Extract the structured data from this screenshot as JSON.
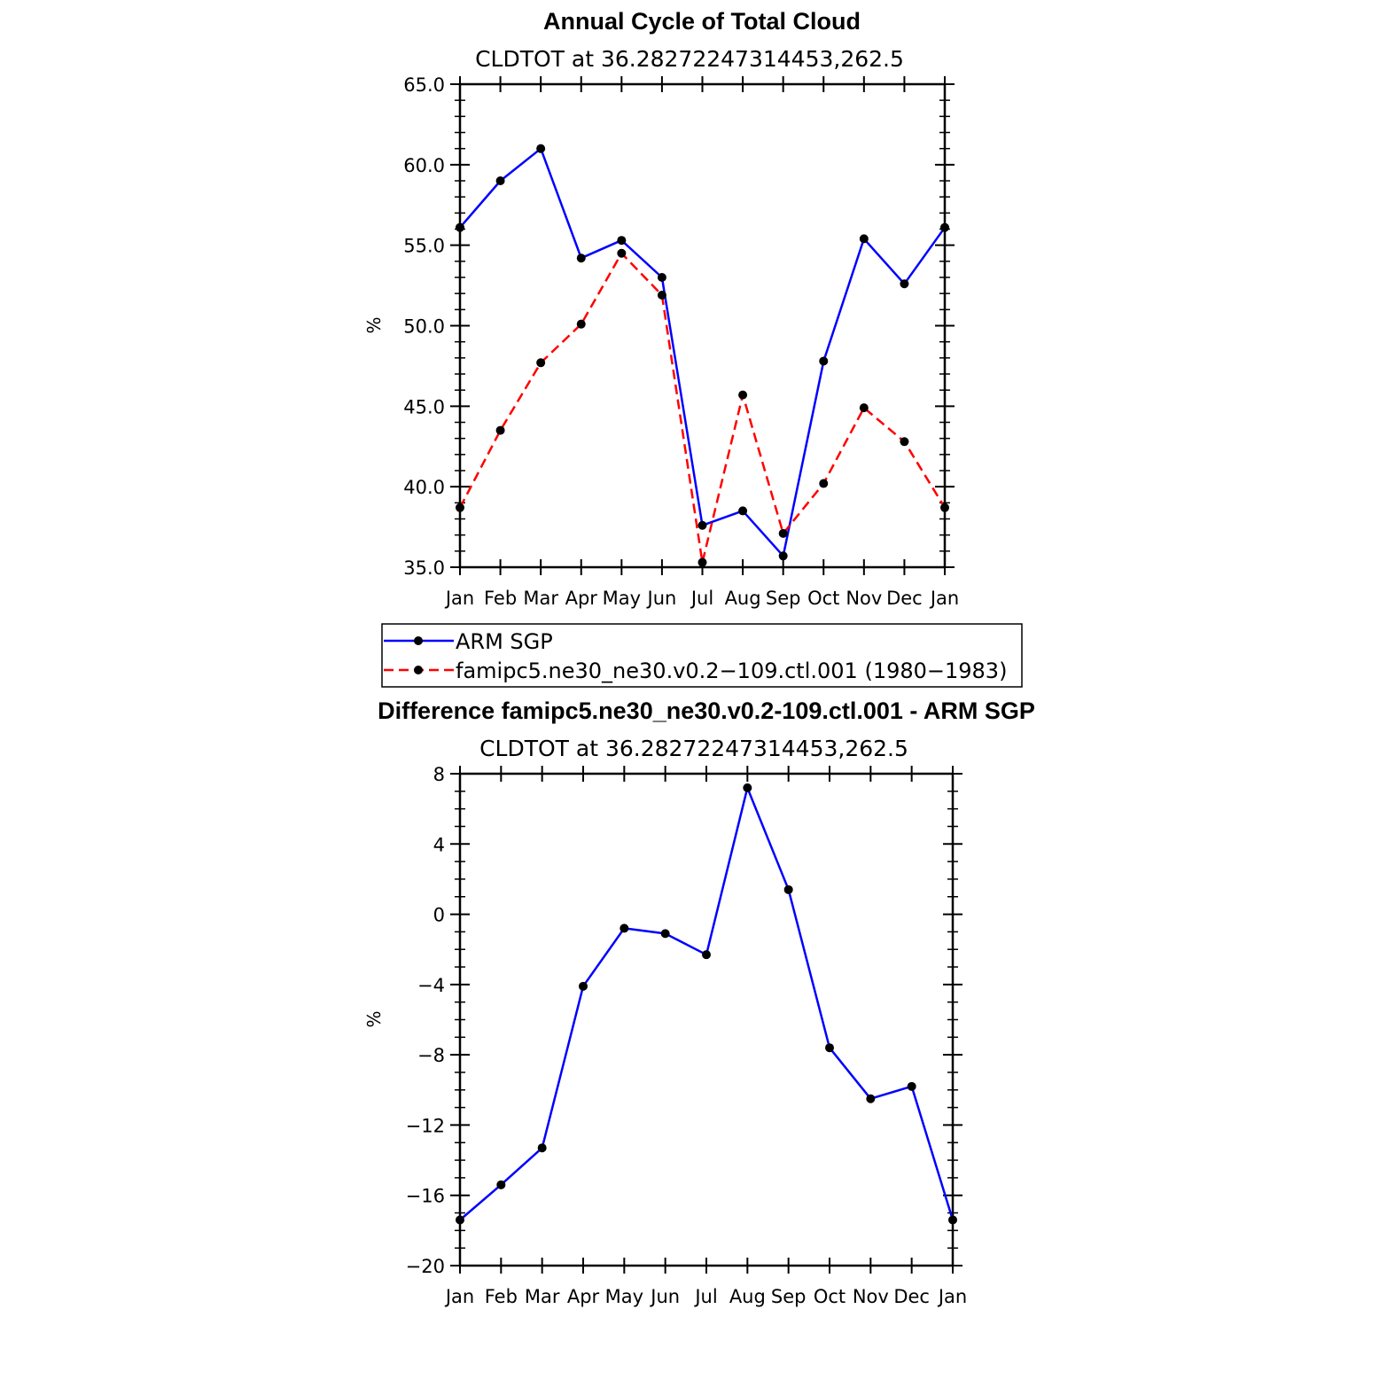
{
  "chart_data": [
    {
      "type": "line",
      "title": "Annual Cycle of Total Cloud",
      "subtitle": "CLDTOT at 36.28272247314453,262.5",
      "xlabel": "",
      "ylabel": "%",
      "categories": [
        "Jan",
        "Feb",
        "Mar",
        "Apr",
        "May",
        "Jun",
        "Jul",
        "Aug",
        "Sep",
        "Oct",
        "Nov",
        "Dec",
        "Jan"
      ],
      "ylim": [
        35,
        65
      ],
      "yticks": [
        "35.0",
        "40.0",
        "45.0",
        "50.0",
        "55.0",
        "60.0",
        "65.0"
      ],
      "series": [
        {
          "name": "ARM SGP",
          "color": "#0000ff",
          "dash": "solid",
          "values": [
            56.1,
            59.0,
            61.0,
            54.2,
            55.3,
            53.0,
            37.6,
            38.5,
            35.7,
            47.8,
            55.4,
            52.6,
            56.1
          ]
        },
        {
          "name": "famipc5.ne30_ne30.v0.2-109.ctl.001 (1980-1983)",
          "color": "#ff0000",
          "dash": "dashed",
          "values": [
            38.7,
            43.5,
            47.7,
            50.1,
            54.5,
            51.9,
            35.3,
            45.7,
            37.1,
            40.2,
            44.9,
            42.8,
            38.7
          ]
        }
      ],
      "legend": [
        {
          "label": "ARM SGP"
        },
        {
          "label": "famipc5.ne30_ne30.v0.2−109.ctl.001 (1980−1983)"
        }
      ]
    },
    {
      "type": "line",
      "title": "Difference famipc5.ne30_ne30.v0.2-109.ctl.001 - ARM SGP",
      "subtitle": "CLDTOT at 36.28272247314453,262.5",
      "xlabel": "",
      "ylabel": "%",
      "categories": [
        "Jan",
        "Feb",
        "Mar",
        "Apr",
        "May",
        "Jun",
        "Jul",
        "Aug",
        "Sep",
        "Oct",
        "Nov",
        "Dec",
        "Jan"
      ],
      "ylim": [
        -20,
        8
      ],
      "yticks": [
        "−20",
        "−16",
        "−12",
        "−8",
        "−4",
        "0",
        "4",
        "8"
      ],
      "series": [
        {
          "name": "Difference",
          "color": "#0000ff",
          "dash": "solid",
          "values": [
            -17.4,
            -15.4,
            -13.3,
            -4.1,
            -0.8,
            -1.1,
            -2.3,
            7.2,
            1.4,
            -7.6,
            -10.5,
            -9.8,
            -17.4
          ]
        }
      ]
    }
  ]
}
